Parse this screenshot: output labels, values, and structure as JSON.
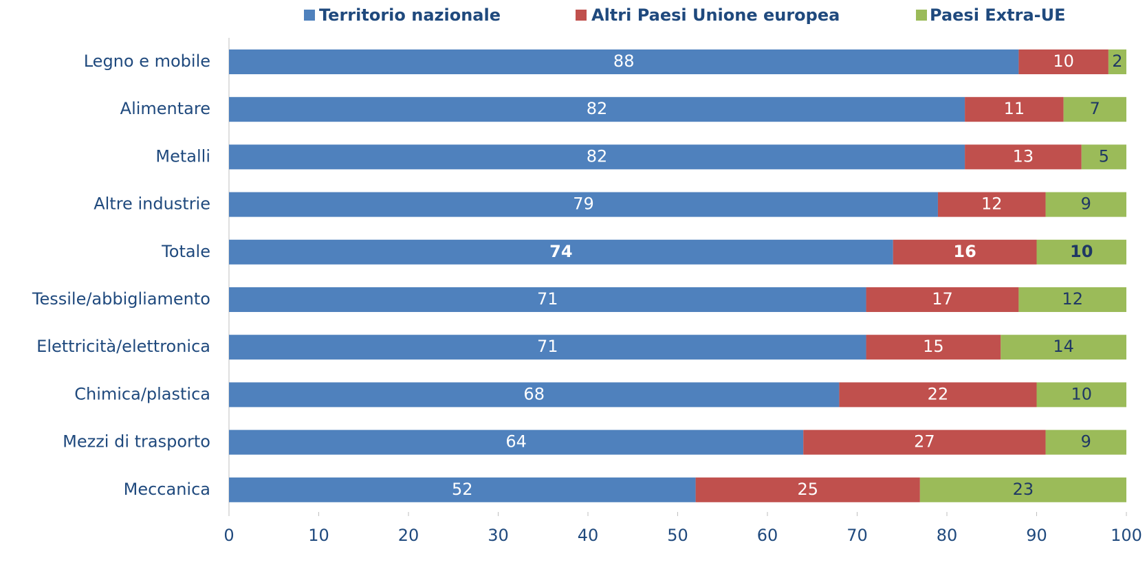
{
  "chart_data": {
    "type": "stacked_barh",
    "categories": [
      "Legno e mobile",
      "Alimentare",
      "Metalli",
      "Altre industrie",
      "Totale",
      "Tessile/abbigliamento",
      "Elettricità/elettronica",
      "Chimica/plastica",
      "Mezzi di trasporto",
      "Meccanica"
    ],
    "series": [
      {
        "name": "Territorio nazionale",
        "color": "#4f81bd",
        "label_color": "#ffffff",
        "values": [
          88,
          82,
          82,
          79,
          74,
          71,
          71,
          68,
          64,
          52
        ]
      },
      {
        "name": "Altri Paesi Unione europea",
        "color": "#c0504d",
        "label_color": "#ffffff",
        "values": [
          10,
          11,
          13,
          12,
          16,
          17,
          15,
          22,
          27,
          25
        ]
      },
      {
        "name": "Paesi Extra-UE",
        "color": "#9bbb59",
        "label_color": "#1f3864",
        "values": [
          2,
          7,
          5,
          9,
          10,
          12,
          14,
          10,
          9,
          23
        ]
      }
    ],
    "bold_index": 4,
    "xlim": [
      0,
      100
    ],
    "xticks": [
      0,
      10,
      20,
      30,
      40,
      50,
      60,
      70,
      80,
      90,
      100
    ],
    "legend": "top"
  }
}
